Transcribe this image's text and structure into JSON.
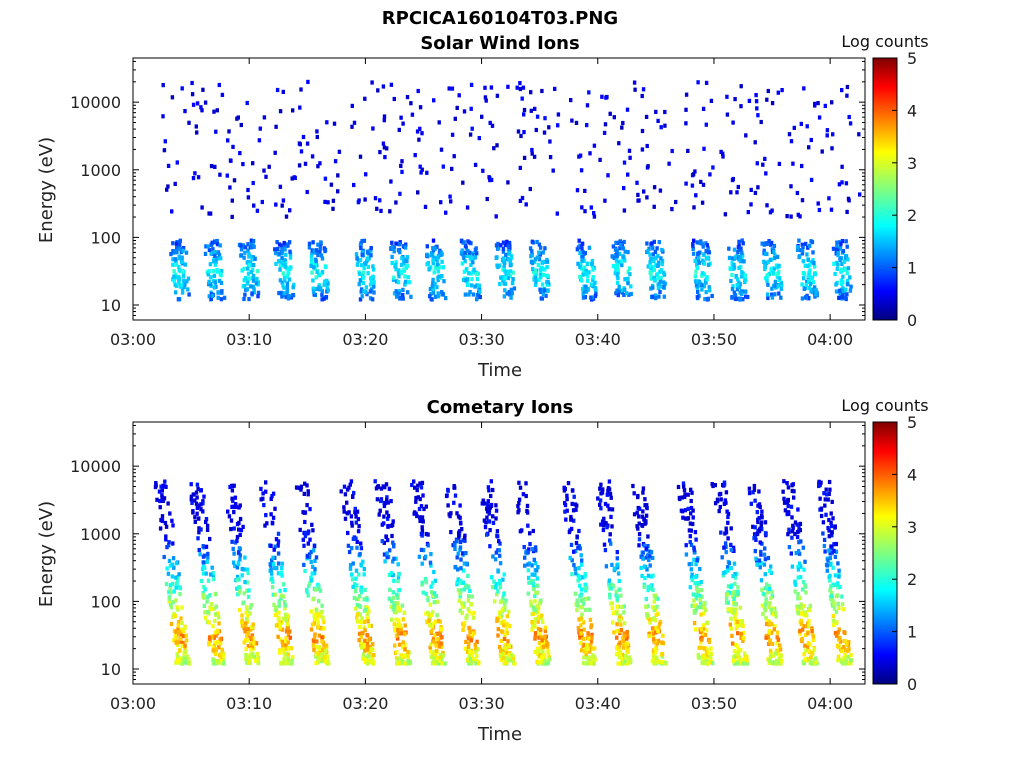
{
  "figure": {
    "filename": "RPCICA160104T03.PNG"
  },
  "colorbar": {
    "label": "Log counts",
    "ticks": [
      "0",
      "1",
      "2",
      "3",
      "4",
      "5"
    ],
    "range": [
      0,
      5
    ],
    "colormap": "jet"
  },
  "chart_data": [
    {
      "type": "heatmap",
      "title": "Solar Wind Ions",
      "xlabel": "Time",
      "ylabel": "Energy (eV)",
      "x_ticks": [
        "03:00",
        "03:10",
        "03:20",
        "03:30",
        "03:40",
        "03:50",
        "04:00"
      ],
      "y_ticks": [
        "10",
        "100",
        "1000",
        "10000"
      ],
      "y_scale": "log",
      "xlim": [
        "03:00",
        "04:03"
      ],
      "ylim": [
        6,
        45000
      ],
      "scan_times": [
        "03:04",
        "03:07",
        "03:10",
        "03:13",
        "03:16",
        "03:20",
        "03:23",
        "03:26",
        "03:29",
        "03:32",
        "03:35",
        "03:39",
        "03:42",
        "03:45",
        "03:49",
        "03:52",
        "03:55",
        "03:58",
        "04:01"
      ],
      "peak_energy_eV": 30,
      "peak_log_counts": 1.6,
      "background_energy_range_eV": [
        200,
        20000
      ],
      "background_log_counts": 0.3
    },
    {
      "type": "heatmap",
      "title": "Cometary Ions",
      "xlabel": "Time",
      "ylabel": "Energy (eV)",
      "x_ticks": [
        "03:00",
        "03:10",
        "03:20",
        "03:30",
        "03:40",
        "03:50",
        "04:00"
      ],
      "y_ticks": [
        "10",
        "100",
        "1000",
        "10000"
      ],
      "y_scale": "log",
      "xlim": [
        "03:00",
        "04:03"
      ],
      "ylim": [
        6,
        45000
      ],
      "scan_times": [
        "03:04",
        "03:07",
        "03:10",
        "03:13",
        "03:16",
        "03:20",
        "03:23",
        "03:26",
        "03:29",
        "03:32",
        "03:35",
        "03:39",
        "03:42",
        "03:45",
        "03:49",
        "03:52",
        "03:55",
        "03:58",
        "04:01"
      ],
      "peak_energy_eV": 30,
      "peak_log_counts": 3.2,
      "tail_energy_eV": 5000,
      "tail_log_counts": 0.4
    }
  ]
}
